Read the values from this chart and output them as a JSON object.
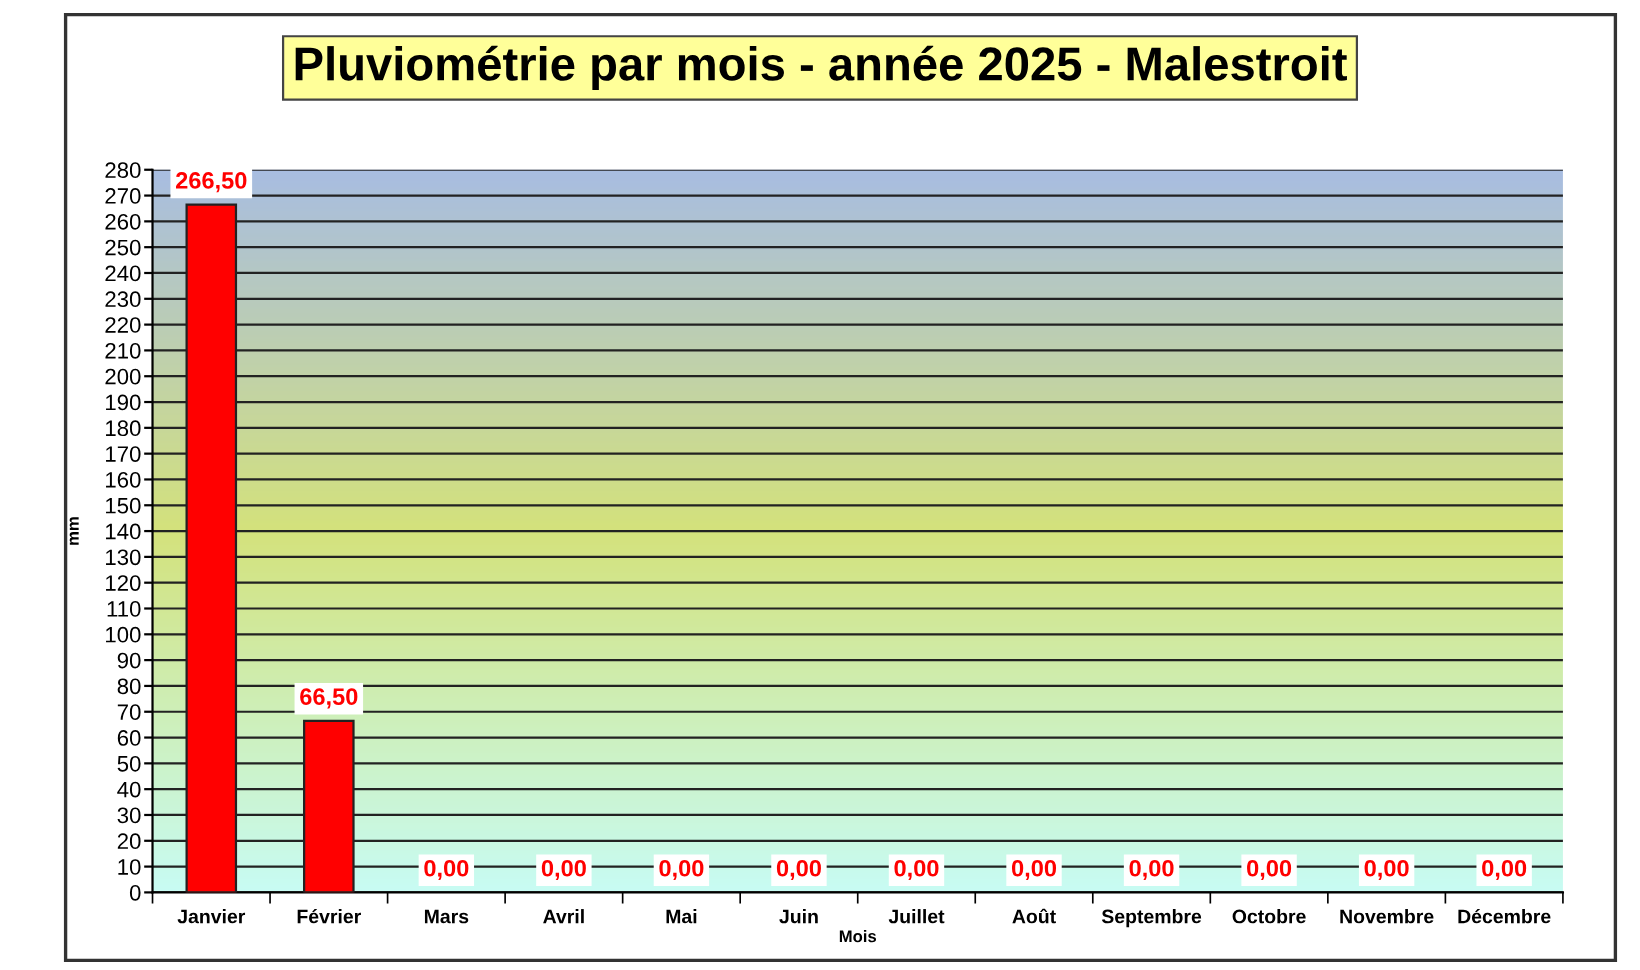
{
  "chart_data": {
    "type": "bar",
    "title": "Pluviométrie par mois - année 2025 - Malestroit",
    "xlabel": "Mois",
    "ylabel": "mm",
    "categories": [
      "Janvier",
      "Février",
      "Mars",
      "Avril",
      "Mai",
      "Juin",
      "Juillet",
      "Août",
      "Septembre",
      "Octobre",
      "Novembre",
      "Décembre"
    ],
    "values": [
      266.5,
      66.5,
      0,
      0,
      0,
      0,
      0,
      0,
      0,
      0,
      0,
      0
    ],
    "value_labels": [
      "266,50",
      "66,50",
      "0,00",
      "0,00",
      "0,00",
      "0,00",
      "0,00",
      "0,00",
      "0,00",
      "0,00",
      "0,00",
      "0,00"
    ],
    "color": "#ff0000",
    "ylim": [
      0,
      280
    ],
    "yticks": [
      0,
      10,
      20,
      30,
      40,
      50,
      60,
      70,
      80,
      90,
      100,
      110,
      120,
      130,
      140,
      150,
      160,
      170,
      180,
      190,
      200,
      210,
      220,
      230,
      240,
      250,
      260,
      270,
      280
    ],
    "grid": "y",
    "legend": false
  }
}
